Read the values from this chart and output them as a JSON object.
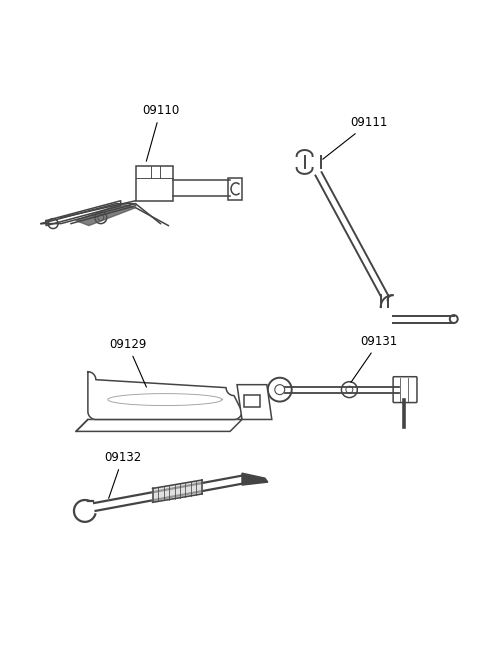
{
  "background_color": "#ffffff",
  "line_color": "#444444",
  "label_color": "#000000",
  "fig_width": 4.8,
  "fig_height": 6.55,
  "dpi": 100,
  "label_fontsize": 8.5,
  "annotation_line_color": "#000000"
}
